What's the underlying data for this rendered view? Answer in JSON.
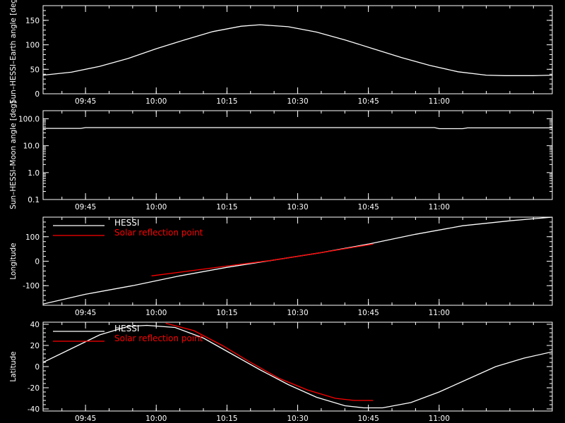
{
  "chart_data": [
    {
      "type": "line",
      "ylabel": "Sun–HESSI–Earth angle [deg]",
      "xlim": [
        "09:36",
        "11:24"
      ],
      "x_ticks": [
        "09:45",
        "10:00",
        "10:15",
        "10:30",
        "10:45",
        "11:00"
      ],
      "ylim": [
        0,
        180
      ],
      "y_ticks": [
        "0",
        "50",
        "100",
        "150"
      ],
      "series": [
        {
          "color": "#ffffff",
          "x": [
            "09:36",
            "09:42",
            "09:48",
            "09:54",
            "10:00",
            "10:06",
            "10:12",
            "10:18",
            "10:22",
            "10:28",
            "10:34",
            "10:40",
            "10:46",
            "10:52",
            "10:58",
            "11:04",
            "11:10",
            "11:14",
            "11:20",
            "11:24"
          ],
          "y": [
            38,
            44,
            56,
            72,
            92,
            110,
            127,
            138,
            141,
            137,
            126,
            110,
            92,
            74,
            58,
            45,
            38,
            37,
            37,
            38
          ]
        }
      ]
    },
    {
      "type": "line",
      "ylabel": "Sun–HESSI–Moon angle [deg]",
      "yscale": "log",
      "xlim": [
        "09:36",
        "11:24"
      ],
      "x_ticks": [
        "09:45",
        "10:00",
        "10:15",
        "10:30",
        "10:45",
        "11:00"
      ],
      "ylim": [
        0.1,
        200
      ],
      "y_ticks": [
        "0.1",
        "1.0",
        "10.0",
        "100.0"
      ],
      "series": [
        {
          "color": "#ffffff",
          "x": [
            "09:36",
            "09:44",
            "09:45",
            "10:59",
            "11:00",
            "11:05",
            "11:06",
            "11:24"
          ],
          "y": [
            44,
            44,
            47,
            47,
            43,
            43,
            46,
            46
          ]
        }
      ]
    },
    {
      "type": "line",
      "ylabel": "Longitude",
      "xlim": [
        "09:36",
        "11:24"
      ],
      "x_ticks": [
        "09:45",
        "10:00",
        "10:15",
        "10:30",
        "10:45",
        "11:00"
      ],
      "ylim": [
        -180,
        180
      ],
      "y_ticks": [
        "-100",
        "0",
        "100"
      ],
      "legend": [
        {
          "label": "HESSI",
          "color": "#ffffff"
        },
        {
          "label": "Solar reflection point",
          "color": "#ff0000"
        }
      ],
      "series": [
        {
          "name": "HESSI",
          "color": "#ffffff",
          "x": [
            "09:36",
            "09:45",
            "09:55",
            "10:05",
            "10:15",
            "10:25",
            "10:35",
            "10:45",
            "10:55",
            "11:05",
            "11:15",
            "11:24"
          ],
          "y": [
            -175,
            -135,
            -100,
            -60,
            -25,
            5,
            35,
            70,
            110,
            145,
            165,
            180
          ]
        },
        {
          "name": "Solar reflection point",
          "color": "#ff0000",
          "x": [
            "09:59",
            "10:05",
            "10:15",
            "10:25",
            "10:35",
            "10:46"
          ],
          "y": [
            -60,
            -45,
            -20,
            5,
            35,
            70
          ]
        }
      ]
    },
    {
      "type": "line",
      "ylabel": "Latitude",
      "xlim": [
        "09:36",
        "11:24"
      ],
      "x_ticks": [
        "09:45",
        "10:00",
        "10:15",
        "10:30",
        "10:45",
        "11:00"
      ],
      "ylim": [
        -42,
        42
      ],
      "y_ticks": [
        "-40",
        "-20",
        "0",
        "20",
        "40"
      ],
      "legend": [
        {
          "label": "HESSI",
          "color": "#ffffff"
        },
        {
          "label": "Solar reflection point",
          "color": "#ff0000"
        }
      ],
      "series": [
        {
          "name": "HESSI",
          "color": "#ffffff",
          "x": [
            "09:36",
            "09:42",
            "09:48",
            "09:54",
            "09:58",
            "10:04",
            "10:10",
            "10:16",
            "10:22",
            "10:28",
            "10:34",
            "10:40",
            "10:44",
            "10:48",
            "10:54",
            "11:00",
            "11:06",
            "11:12",
            "11:18",
            "11:24"
          ],
          "y": [
            4,
            17,
            30,
            38,
            39,
            37,
            27,
            12,
            -3,
            -17,
            -29,
            -37,
            -39,
            -39,
            -34,
            -24,
            -12,
            0,
            8,
            14
          ]
        },
        {
          "name": "Solar reflection point",
          "color": "#ff0000",
          "x": [
            "10:02",
            "10:08",
            "10:14",
            "10:20",
            "10:26",
            "10:32",
            "10:38",
            "10:42",
            "10:46"
          ],
          "y": [
            41,
            34,
            20,
            4,
            -11,
            -22,
            -30,
            -32,
            -32
          ]
        }
      ]
    }
  ]
}
